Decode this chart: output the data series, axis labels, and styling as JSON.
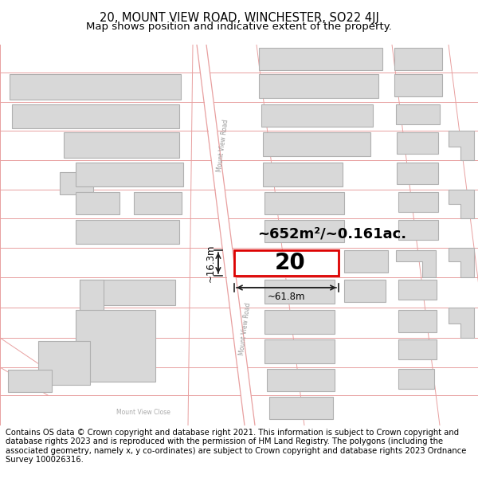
{
  "title_line1": "20, MOUNT VIEW ROAD, WINCHESTER, SO22 4JJ",
  "title_line2": "Map shows position and indicative extent of the property.",
  "area_text": "~652m²/~0.161ac.",
  "width_label": "~61.8m",
  "height_label": "~16.3m",
  "property_number": "20",
  "footer_text": "Contains OS data © Crown copyright and database right 2021. This information is subject to Crown copyright and database rights 2023 and is reproduced with the permission of HM Land Registry. The polygons (including the associated geometry, namely x, y co-ordinates) are subject to Crown copyright and database rights 2023 Ordnance Survey 100026316.",
  "bg_color": "#ffffff",
  "map_bg": "#ffffff",
  "road_line_color": "#e8a0a0",
  "building_fill": "#d8d8d8",
  "building_edge": "#b0b0b0",
  "property_edge": "#dd0000",
  "property_fill": "#ffffff",
  "dim_line_color": "#222222",
  "title_fontsize": 10.5,
  "subtitle_fontsize": 9.5,
  "footer_fontsize": 7.2
}
